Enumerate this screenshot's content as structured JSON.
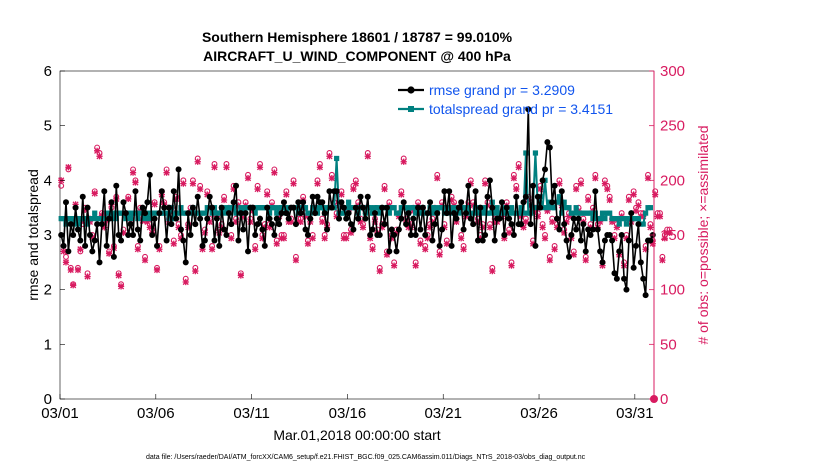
{
  "chart_data": {
    "type": "line",
    "title": "Southern Hemisphere 18601 / 18787 = 99.010%",
    "subtitle": "AIRCRAFT_U_WIND_COMPONENT @ 400 hPa",
    "xlabel": "Mar.01,2018 00:00:00 start",
    "ylabel_left": "rmse and totalspread",
    "ylabel_right": "# of obs: o=possible; ×=assimilated",
    "footnote": "data file: /Users/raeder/DAI/ATM_forcXX/CAM6_setup/f.e21.FHIST_BGC.f09_025.CAM6assim.011/Diags_NTrS_2018-03/obs_diag_output.nc",
    "x_ticks": [
      "03/01",
      "03/06",
      "03/11",
      "03/16",
      "03/21",
      "03/26",
      "03/31"
    ],
    "x_tick_days": [
      0,
      5,
      10,
      15,
      20,
      25,
      30
    ],
    "xlim": [
      0,
      31
    ],
    "ylim_left": [
      0,
      6
    ],
    "y_ticks_left": [
      "0",
      "1",
      "2",
      "3",
      "4",
      "5",
      "6"
    ],
    "ylim_right": [
      0,
      300
    ],
    "y_ticks_right": [
      "0",
      "50",
      "100",
      "150",
      "200",
      "250",
      "300"
    ],
    "colors": {
      "rmse": "#000000",
      "spread": "#008080",
      "obs": "#d81b60",
      "right_axis": "#d81b60",
      "legend_text": "#1155ee"
    },
    "series": [
      {
        "name": "rmse grand pr = 3.2909",
        "values": [
          3.0,
          2.8,
          3.6,
          2.7,
          3.2,
          3.0,
          3.5,
          3.1,
          2.9,
          3.7,
          2.8,
          3.5,
          3.0,
          2.7,
          2.9,
          3.2,
          2.5,
          3.2,
          3.8,
          2.8,
          3.3,
          3.6,
          2.6,
          3.9,
          3.0,
          2.9,
          3.6,
          3.4,
          3.0,
          3.2,
          3.0,
          3.8,
          3.1,
          2.9,
          3.5,
          3.4,
          3.6,
          4.1,
          3.0,
          3.3,
          2.8,
          3.4,
          3.8,
          3.5,
          2.9,
          3.5,
          3.2,
          3.8,
          3.3,
          4.2,
          3.1,
          2.9,
          2.5,
          3.4,
          3.0,
          3.5,
          3.2,
          3.7,
          3.3,
          2.8,
          2.9,
          3.3,
          3.7,
          3.5,
          2.9,
          3.3,
          2.8,
          3.5,
          3.1,
          3.0,
          3.4,
          3.2,
          3.6,
          3.9,
          2.9,
          3.4,
          3.1,
          3.4,
          2.7,
          3.5,
          3.5,
          3.0,
          3.2,
          3.3,
          3.1,
          2.8,
          3.5,
          3.3,
          3.2,
          3.0,
          3.3,
          3.2,
          3.4,
          3.6,
          3.4,
          3.3,
          3.5,
          3.5,
          3.2,
          3.6,
          3.4,
          3.6,
          3.1,
          3.0,
          3.3,
          3.7,
          3.4,
          3.7,
          3.6,
          3.6,
          3.4,
          3.1,
          3.8,
          3.5,
          3.8,
          3.8,
          3.3,
          3.6,
          3.5,
          3.3,
          3.4,
          3.2,
          3.1,
          3.5,
          3.3,
          3.7,
          3.5,
          3.3,
          3.7,
          3.0,
          3.1,
          3.4,
          3.0,
          3.0,
          3.5,
          3.2,
          3.5,
          2.7,
          3.1,
          3.0,
          2.7,
          3.1,
          3.3,
          3.6,
          3.2,
          3.4,
          3.0,
          3.3,
          3.0,
          3.5,
          3.1,
          3.5,
          3.0,
          3.4,
          3.6,
          2.9,
          3.2,
          3.4,
          2.8,
          3.1,
          3.8,
          3.4,
          3.8,
          2.8,
          3.4,
          3.3,
          3.5,
          3.6,
          3.1,
          3.4,
          3.9,
          3.3,
          3.2,
          3.8,
          2.9,
          3.5,
          2.9,
          3.0,
          3.7,
          4.0,
          3.5,
          2.9,
          3.3,
          3.3,
          3.6,
          3.0,
          3.5,
          3.3,
          3.2,
          3.0,
          3.7,
          3.2,
          3.2,
          3.6,
          3.7,
          5.3,
          3.2,
          3.9,
          2.8,
          3.7,
          3.5,
          4.0,
          4.2,
          4.7,
          4.6,
          3.6,
          3.9,
          3.3,
          3.1,
          3.8,
          3.2,
          2.9,
          2.6,
          3.0,
          3.3,
          3.1,
          3.3,
          2.9,
          3.2,
          2.7,
          3.1,
          3.0,
          3.1,
          3.8,
          3.1,
          2.7,
          2.5,
          2.9,
          3.0,
          3.0,
          2.9,
          2.3,
          2.2,
          2.7,
          3.0,
          2.2,
          2.0,
          2.9,
          3.4,
          2.4,
          2.8,
          3.2,
          2.5,
          2.2,
          1.9,
          2.9,
          2.9,
          3.0
        ]
      },
      {
        "name": "totalspread grand pr = 3.4151",
        "values": [
          3.3,
          3.3,
          3.2,
          3.3,
          3.3,
          3.2,
          3.3,
          3.2,
          3.3,
          3.3,
          3.3,
          3.2,
          3.3,
          3.3,
          3.4,
          3.3,
          3.3,
          3.3,
          3.3,
          3.4,
          3.4,
          3.3,
          3.4,
          3.3,
          3.4,
          3.4,
          3.4,
          3.3,
          3.4,
          3.3,
          3.4,
          3.4,
          3.3,
          3.4,
          3.4,
          3.3,
          3.4,
          3.3,
          3.4,
          3.4,
          3.4,
          3.4,
          3.4,
          3.4,
          3.4,
          3.3,
          3.5,
          3.3,
          3.4,
          3.4,
          3.5,
          3.4,
          3.4,
          3.4,
          3.4,
          3.5,
          3.4,
          3.4,
          3.4,
          3.4,
          3.4,
          3.5,
          3.5,
          3.4,
          3.5,
          3.4,
          3.4,
          3.5,
          3.4,
          3.5,
          3.4,
          3.5,
          3.5,
          3.4,
          3.4,
          3.5,
          3.4,
          3.5,
          3.5,
          3.5,
          3.5,
          3.4,
          3.5,
          3.5,
          3.5,
          3.5,
          3.5,
          3.4,
          3.5,
          3.5,
          3.4,
          3.5,
          3.5,
          3.5,
          3.4,
          3.5,
          3.5,
          3.5,
          3.5,
          3.4,
          3.5,
          3.5,
          3.5,
          3.4,
          3.4,
          3.5,
          3.5,
          3.4,
          3.5,
          3.5,
          3.4,
          3.5,
          3.5,
          3.5,
          3.5,
          4.4,
          3.4,
          3.4,
          3.4,
          3.5,
          3.6,
          3.5,
          3.5,
          3.5,
          3.4,
          3.5,
          3.5,
          3.4,
          3.5,
          3.5,
          3.4,
          3.5,
          3.5,
          3.4,
          3.5,
          3.5,
          3.5,
          3.4,
          3.5,
          3.5,
          3.4,
          3.4,
          3.5,
          3.5,
          3.5,
          3.4,
          3.5,
          3.5,
          3.4,
          3.5,
          3.4,
          3.5,
          3.4,
          3.4,
          3.5,
          3.4,
          3.5,
          3.4,
          3.5,
          3.5,
          3.4,
          3.5,
          3.4,
          3.5,
          3.4,
          3.5,
          3.4,
          3.5,
          3.5,
          3.4,
          3.5,
          3.4,
          3.4,
          3.5,
          3.4,
          3.5,
          3.4,
          3.5,
          3.4,
          3.4,
          3.6,
          3.4,
          3.5,
          3.4,
          3.4,
          3.5,
          3.4,
          3.4,
          3.5,
          3.4,
          3.4,
          3.4,
          3.5,
          3.4,
          4.5,
          3.4,
          3.4,
          3.5,
          4.5,
          3.5,
          3.7,
          3.5,
          4.0,
          3.5,
          3.6,
          3.5,
          3.5,
          3.6,
          3.7,
          3.4,
          3.6,
          3.5,
          3.5,
          3.4,
          3.4,
          3.5,
          3.4,
          3.4,
          3.4,
          3.4,
          3.4,
          3.4,
          3.3,
          3.4,
          3.3,
          3.3,
          3.4,
          3.3,
          3.4,
          3.4,
          3.3,
          3.3,
          3.3,
          3.2,
          3.3,
          3.3,
          3.2,
          3.3,
          3.3,
          3.3,
          3.3,
          3.3,
          3.2,
          3.2,
          3.4,
          3.5,
          3.5
        ]
      }
    ],
    "obs_possible": [
      195,
      140,
      130,
      210,
      120,
      105,
      175,
      120,
      135,
      160,
      175,
      115,
      165,
      150,
      190,
      230,
      225,
      170,
      160,
      165,
      135,
      175,
      140,
      185,
      115,
      105,
      155,
      170,
      185,
      165,
      210,
      200,
      140,
      175,
      165,
      130,
      165,
      160,
      155,
      180,
      120,
      140,
      190,
      180,
      210,
      165,
      175,
      145,
      185,
      160,
      150,
      200,
      110,
      160,
      175,
      200,
      120,
      220,
      195,
      140,
      155,
      190,
      165,
      140,
      215,
      170,
      155,
      160,
      185,
      215,
      175,
      150,
      195,
      165,
      180,
      115,
      170,
      180,
      205,
      165,
      175,
      140,
      195,
      215,
      150,
      160,
      190,
      160,
      180,
      210,
      145,
      170,
      150,
      150,
      190,
      165,
      165,
      200,
      130,
      165,
      165,
      185,
      170,
      145,
      165,
      150,
      175,
      200,
      215,
      165,
      150,
      160,
      225,
      205,
      180,
      170,
      180,
      190,
      150,
      150,
      175,
      155,
      195,
      200,
      180,
      165,
      160,
      175,
      225,
      150,
      140,
      165,
      155,
      120,
      160,
      195,
      135,
      180,
      150,
      125,
      155,
      170,
      190,
      220,
      165,
      160,
      160,
      175,
      125,
      180,
      145,
      175,
      140,
      150,
      160,
      165,
      175,
      205,
      135,
      180,
      160,
      145,
      175,
      185,
      180,
      165,
      175,
      150,
      140,
      170,
      180,
      200,
      180,
      175,
      165,
      150,
      160,
      200,
      180,
      160,
      120,
      165,
      165,
      170,
      170,
      150,
      180,
      155,
      125,
      205,
      195,
      215,
      170,
      160,
      165,
      185,
      180,
      145,
      175,
      170,
      195,
      160,
      150,
      175,
      130,
      165,
      140,
      160,
      200,
      180,
      155,
      165,
      170,
      150,
      135,
      195,
      175,
      200,
      165,
      130,
      185,
      160,
      175,
      205,
      160,
      165,
      125,
      200,
      195,
      185,
      165,
      150,
      160,
      135,
      170,
      125,
      150,
      185,
      165,
      190,
      175,
      180,
      170,
      170,
      140,
      205,
      160,
      145,
      190,
      170,
      170,
      130,
      150,
      155,
      155
    ],
    "obs_assimilated": [
      200,
      135,
      125,
      212,
      118,
      104,
      178,
      118,
      137,
      163,
      173,
      112,
      162,
      148,
      188,
      227,
      222,
      168,
      157,
      163,
      133,
      178,
      138,
      183,
      113,
      103,
      152,
      168,
      183,
      163,
      207,
      198,
      137,
      172,
      163,
      127,
      162,
      157,
      152,
      178,
      118,
      137,
      187,
      178,
      207,
      162,
      172,
      142,
      183,
      157,
      147,
      197,
      107,
      157,
      172,
      197,
      117,
      217,
      192,
      137,
      152,
      187,
      162,
      137,
      212,
      167,
      152,
      157,
      182,
      212,
      172,
      147,
      192,
      162,
      177,
      113,
      167,
      177,
      202,
      162,
      172,
      137,
      192,
      212,
      147,
      157,
      187,
      157,
      177,
      207,
      142,
      167,
      147,
      147,
      187,
      162,
      162,
      197,
      127,
      162,
      162,
      182,
      167,
      142,
      162,
      147,
      172,
      197,
      212,
      162,
      147,
      157,
      222,
      202,
      177,
      167,
      177,
      187,
      147,
      147,
      172,
      152,
      192,
      197,
      177,
      162,
      157,
      172,
      222,
      147,
      137,
      162,
      152,
      117,
      157,
      192,
      132,
      177,
      147,
      122,
      152,
      167,
      187,
      217,
      162,
      157,
      157,
      172,
      122,
      177,
      142,
      172,
      137,
      147,
      157,
      162,
      172,
      202,
      132,
      177,
      157,
      142,
      172,
      182,
      177,
      162,
      172,
      147,
      137,
      167,
      177,
      197,
      177,
      172,
      162,
      147,
      157,
      197,
      177,
      157,
      117,
      162,
      162,
      167,
      167,
      147,
      177,
      152,
      122,
      202,
      192,
      212,
      167,
      157,
      162,
      182,
      177,
      142,
      172,
      167,
      192,
      157,
      147,
      172,
      127,
      162,
      137,
      157,
      197,
      177,
      152,
      162,
      167,
      147,
      132,
      192,
      172,
      197,
      162,
      127,
      182,
      157,
      172,
      202,
      157,
      162,
      122,
      197,
      192,
      182,
      162,
      147,
      157,
      132,
      167,
      122,
      147,
      182,
      162,
      187,
      172,
      177,
      167,
      167,
      137,
      202,
      157,
      142,
      187,
      167,
      167,
      127,
      147,
      152,
      152
    ]
  }
}
